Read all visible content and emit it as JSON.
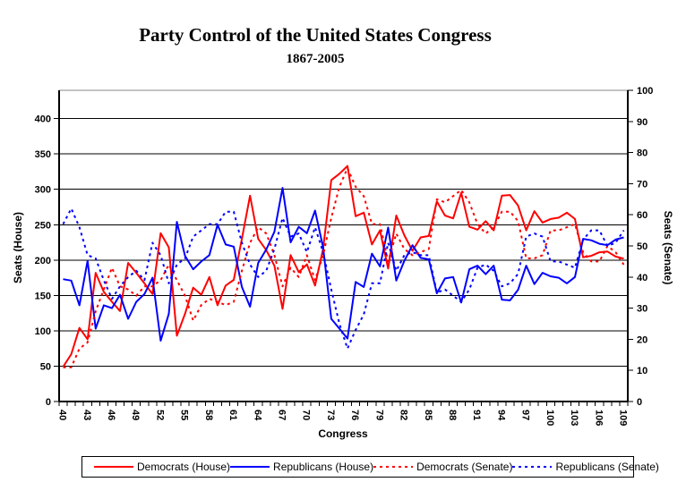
{
  "chart_data": {
    "type": "line",
    "title": "Party Control of the United States Congress",
    "subtitle": "1867-2005",
    "xlabel": "Congress",
    "ylabel_left": "Seats (House)",
    "ylabel_right": "Seats (Senate)",
    "background_color": "#FFFFFF",
    "grid": true,
    "legend_position": "bottom",
    "axes": {
      "house": {
        "min": 0,
        "max": 440,
        "tick_step": 50,
        "tick_labels": [
          0,
          50,
          100,
          150,
          200,
          250,
          300,
          350,
          400
        ]
      },
      "senate": {
        "min": 0,
        "max": 100,
        "tick_step": 10,
        "tick_labels": [
          0,
          10,
          20,
          30,
          40,
          50,
          60,
          70,
          80,
          90,
          100
        ]
      },
      "x": {
        "start": 40,
        "end": 109,
        "label_step": 3,
        "tick_labels": [
          40,
          43,
          46,
          49,
          52,
          55,
          58,
          61,
          64,
          67,
          70,
          73,
          76,
          79,
          82,
          85,
          88,
          91,
          94,
          97,
          100,
          103,
          106,
          109
        ]
      }
    },
    "colors": {
      "democrat": "#FF0000",
      "republican": "#0000FF",
      "gridline": "#000000",
      "plot_frame": "#8A8A8A"
    },
    "series": [
      {
        "name": "Democrats (House)",
        "axis": "house",
        "color": "#FF0000",
        "dash": "solid",
        "values": [
          49,
          67,
          104,
          88,
          182,
          155,
          141,
          128,
          196,
          182,
          167,
          152,
          238,
          218,
          93,
          124,
          161,
          151,
          176,
          136,
          164,
          172,
          230,
          291,
          230,
          214,
          192,
          131,
          207,
          183,
          194,
          164,
          216,
          313,
          322,
          333,
          262,
          267,
          222,
          242,
          188,
          263,
          235,
          213,
          232,
          234,
          283,
          263,
          259,
          295,
          247,
          243,
          255,
          242,
          291,
          292,
          277,
          242,
          269,
          253,
          258,
          260,
          267,
          258,
          204,
          206,
          211,
          212,
          205,
          202
        ]
      },
      {
        "name": "Republicans (House)",
        "axis": "house",
        "color": "#0000FF",
        "dash": "solid",
        "values": [
          173,
          171,
          136,
          199,
          103,
          136,
          132,
          151,
          117,
          141,
          152,
          175,
          86,
          124,
          254,
          206,
          187,
          198,
          207,
          250,
          222,
          219,
          162,
          134,
          196,
          215,
          240,
          302,
          225,
          247,
          238,
          270,
          218,
          117,
          103,
          89,
          169,
          162,
          209,
          191,
          246,
          171,
          199,
          221,
          203,
          201,
          153,
          174,
          176,
          140,
          187,
          192,
          180,
          192,
          144,
          143,
          158,
          192,
          166,
          182,
          177,
          175,
          167,
          176,
          230,
          228,
          223,
          221,
          229,
          232
        ]
      },
      {
        "name": "Democrats (Senate)",
        "axis": "senate",
        "color": "#FF0000",
        "dash": "dashed",
        "values": [
          11,
          11,
          17,
          19,
          29,
          36,
          43,
          37,
          36,
          34,
          37,
          37,
          39,
          44,
          39,
          34,
          26,
          31,
          33,
          32,
          31,
          32,
          42,
          51,
          56,
          54,
          47,
          37,
          43,
          40,
          47,
          39,
          47,
          59,
          69,
          75,
          69,
          66,
          57,
          57,
          45,
          54,
          49,
          47,
          48,
          49,
          65,
          64,
          66,
          68,
          64,
          57,
          54,
          56,
          61,
          61,
          58,
          46,
          46,
          47,
          55,
          55,
          56,
          57,
          48,
          45,
          45,
          50,
          48,
          44
        ]
      },
      {
        "name": "Republicans (Senate)",
        "axis": "senate",
        "color": "#0000FF",
        "dash": "dashed",
        "values": [
          57,
          62,
          56,
          47,
          46,
          39,
          33,
          37,
          40,
          42,
          39,
          51,
          47,
          38,
          44,
          46,
          53,
          55,
          57,
          57,
          61,
          61,
          51,
          44,
          40,
          42,
          49,
          59,
          53,
          54,
          48,
          56,
          48,
          36,
          25,
          17,
          23,
          28,
          38,
          38,
          51,
          42,
          47,
          48,
          47,
          47,
          35,
          36,
          34,
          32,
          36,
          43,
          44,
          42,
          37,
          38,
          41,
          53,
          54,
          53,
          45,
          45,
          44,
          43,
          52,
          55,
          55,
          50,
          51,
          55
        ]
      }
    ]
  }
}
